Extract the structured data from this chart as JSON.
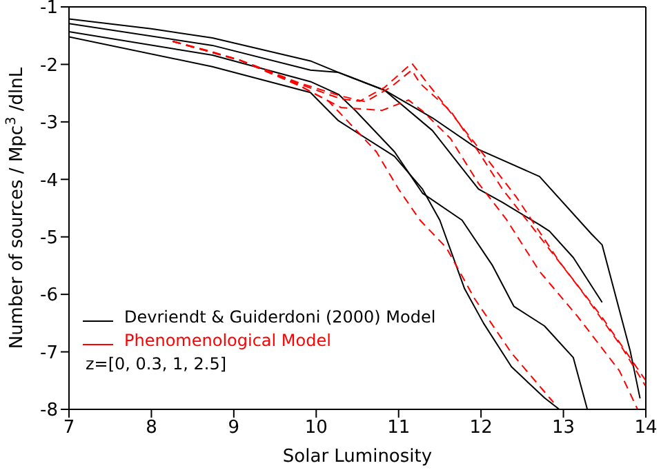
{
  "chart_data": {
    "type": "line",
    "xlabel": "Solar Luminosity",
    "ylabel": "Number of sources / Mpc$^{3}$ /dlnL",
    "xlim": [
      7,
      14
    ],
    "ylim": [
      -8,
      -1
    ],
    "xticks": [
      7,
      8,
      9,
      10,
      11,
      12,
      13,
      14
    ],
    "yticks": [
      -8,
      -7,
      -6,
      -5,
      -4,
      -3,
      -2,
      -1
    ],
    "legend": "bottom left",
    "marker": "none",
    "annotations": [
      "z=[0, 0.3, 1, 2.5]"
    ],
    "series": [
      {
        "name": "Devriendt & Guiderdoni (2000) Model",
        "color": "#000000",
        "line_style": "solid",
        "x": [
          7,
          8,
          8.74,
          9.93,
          10.27,
          10.83,
          11.41,
          11.97,
          12.71,
          13.34,
          13.47,
          13.81,
          13.93
        ],
        "values": [
          -1.21,
          -1.38,
          -1.54,
          -1.94,
          -2.14,
          -2.45,
          -2.93,
          -3.48,
          -3.95,
          -4.95,
          -5.14,
          -6.98,
          -7.81
        ]
      },
      {
        "color": "#000000",
        "line_style": "solid",
        "x": [
          7,
          8.74,
          9.93,
          10.27,
          10.83,
          11.41,
          11.97,
          12.26,
          12.71,
          12.83,
          13.12,
          13.47
        ],
        "values": [
          -1.29,
          -1.67,
          -2.1,
          -2.14,
          -2.45,
          -3.15,
          -4.17,
          -4.4,
          -4.79,
          -4.9,
          -5.36,
          -6.14
        ]
      },
      {
        "color": "#000000",
        "line_style": "solid",
        "x": [
          7,
          8.74,
          9.93,
          10.27,
          10.48,
          10.95,
          11.29,
          11.77,
          12.14,
          12.4,
          12.77,
          13.12,
          13.29
        ],
        "values": [
          -1.43,
          -1.84,
          -2.3,
          -2.52,
          -2.81,
          -3.52,
          -4.24,
          -4.71,
          -5.5,
          -6.21,
          -6.55,
          -7.1,
          -8
        ]
      },
      {
        "color": "#000000",
        "line_style": "solid",
        "x": [
          7,
          8.74,
          9.93,
          10.27,
          10.95,
          11.29,
          11.5,
          11.8,
          12.03,
          12.37,
          12.77,
          12.95
        ],
        "values": [
          -1.52,
          -2.04,
          -2.49,
          -2.98,
          -3.6,
          -4.17,
          -4.71,
          -5.9,
          -6.5,
          -7.26,
          -7.8,
          -8
        ]
      },
      {
        "name": "Phenomenological Model",
        "color": "#ff0000",
        "line_style": "dashed",
        "x": [
          8.26,
          8.69,
          9.08,
          9.47,
          9.81,
          10.15,
          10.39,
          10.73,
          11.0,
          11.26,
          11.58,
          11.92,
          12.37,
          12.88
        ],
        "values": [
          -1.6,
          -1.76,
          -1.93,
          -2.14,
          -2.38,
          -2.64,
          -3.0,
          -3.52,
          -4.17,
          -4.71,
          -5.19,
          -6.07,
          -7.02,
          -7.88
        ]
      },
      {
        "color": "#ff0000",
        "line_style": "dashed",
        "x": [
          8.26,
          9.08,
          9.81,
          10.3,
          10.8,
          11.12,
          11.29,
          11.63,
          11.97,
          12.31,
          12.71,
          13.17,
          13.68,
          13.9
        ],
        "values": [
          -1.6,
          -1.93,
          -2.38,
          -2.75,
          -2.8,
          -2.62,
          -2.81,
          -3.29,
          -4.07,
          -4.7,
          -5.6,
          -6.38,
          -7.33,
          -8
        ]
      },
      {
        "color": "#ff0000",
        "line_style": "dashed",
        "x": [
          8.26,
          9.08,
          9.81,
          10.3,
          10.53,
          10.83,
          11.16,
          11.5,
          11.92,
          12.43,
          12.95,
          13.46,
          14
        ],
        "values": [
          -1.6,
          -1.93,
          -2.35,
          -2.6,
          -2.64,
          -2.4,
          -1.98,
          -2.6,
          -3.36,
          -4.31,
          -5.43,
          -6.38,
          -7.5
        ]
      },
      {
        "color": "#ff0000",
        "line_style": "dashed",
        "x": [
          8.26,
          9.08,
          9.81,
          10.3,
          10.6,
          10.9,
          11.16,
          11.26,
          11.63,
          11.97,
          12.26,
          12.66,
          13.2,
          13.7,
          14
        ],
        "values": [
          -1.6,
          -1.93,
          -2.33,
          -2.55,
          -2.65,
          -2.4,
          -2.1,
          -2.33,
          -2.81,
          -3.52,
          -4.17,
          -4.9,
          -5.9,
          -6.9,
          -7.6
        ]
      }
    ]
  }
}
